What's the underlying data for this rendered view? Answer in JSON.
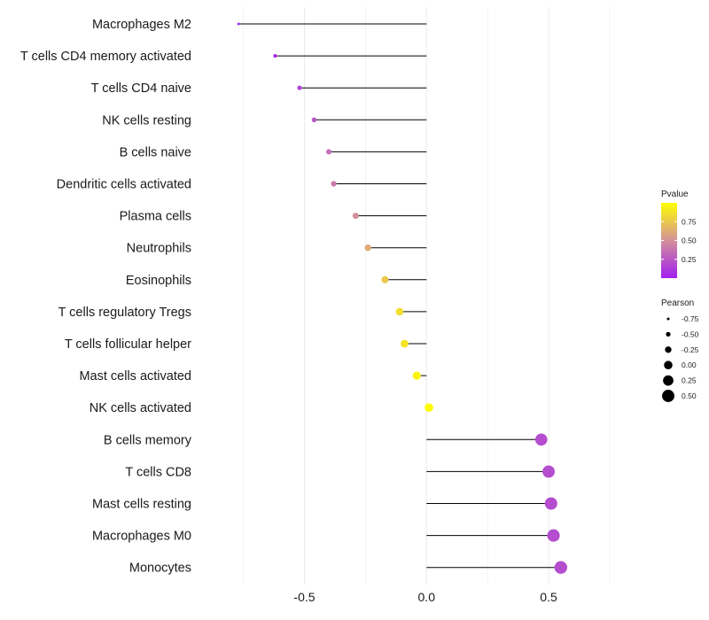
{
  "chart_data": {
    "type": "lollipop",
    "title": "",
    "xlabel": "",
    "ylabel": "",
    "xlim": [
      -0.93,
      0.91
    ],
    "xticks": [
      -0.5,
      0.0,
      0.5
    ],
    "xtick_labels": [
      "-0.5",
      "0.0",
      "0.5"
    ],
    "grid": true,
    "baseline": 0,
    "categories": [
      "Macrophages M2",
      "T cells CD4 memory activated",
      "T cells CD4 naive",
      "NK cells resting",
      "B cells naive",
      "Dendritic cells activated",
      "Plasma cells",
      "Neutrophils",
      "Eosinophils",
      "T cells regulatory  Tregs ",
      "T cells follicular helper",
      "Mast cells activated",
      "NK cells activated",
      "B cells memory",
      "T cells CD8",
      "Mast cells resting",
      "Macrophages M0",
      "Monocytes"
    ],
    "pearson": [
      -0.77,
      -0.62,
      -0.52,
      -0.46,
      -0.4,
      -0.38,
      -0.29,
      -0.24,
      -0.17,
      -0.11,
      -0.09,
      -0.04,
      0.01,
      0.47,
      0.5,
      0.51,
      0.52,
      0.55
    ],
    "pvalue": [
      0.01,
      0.05,
      0.15,
      0.25,
      0.35,
      0.4,
      0.5,
      0.62,
      0.75,
      0.85,
      0.88,
      0.95,
      0.99,
      0.2,
      0.2,
      0.2,
      0.2,
      0.2
    ],
    "legends": {
      "color": {
        "title": "Pvalue",
        "ticks": [
          0.75,
          0.5,
          0.25
        ],
        "labels": [
          "0.75",
          "0.50",
          "0.25"
        ],
        "range": [
          0.0,
          1.0
        ],
        "low_color": "#a020f0",
        "mid_color": "#d3909a",
        "high_color": "#ffff00"
      },
      "size": {
        "title": "Pearson",
        "values": [
          -0.75,
          -0.5,
          -0.25,
          0.0,
          0.25,
          0.5
        ],
        "labels": [
          "-0.75",
          "-0.50",
          "-0.25",
          "0.00",
          "0.25",
          "0.50"
        ]
      }
    },
    "colors": {
      "segment": "#000000",
      "grid": "#ebebeb"
    }
  }
}
